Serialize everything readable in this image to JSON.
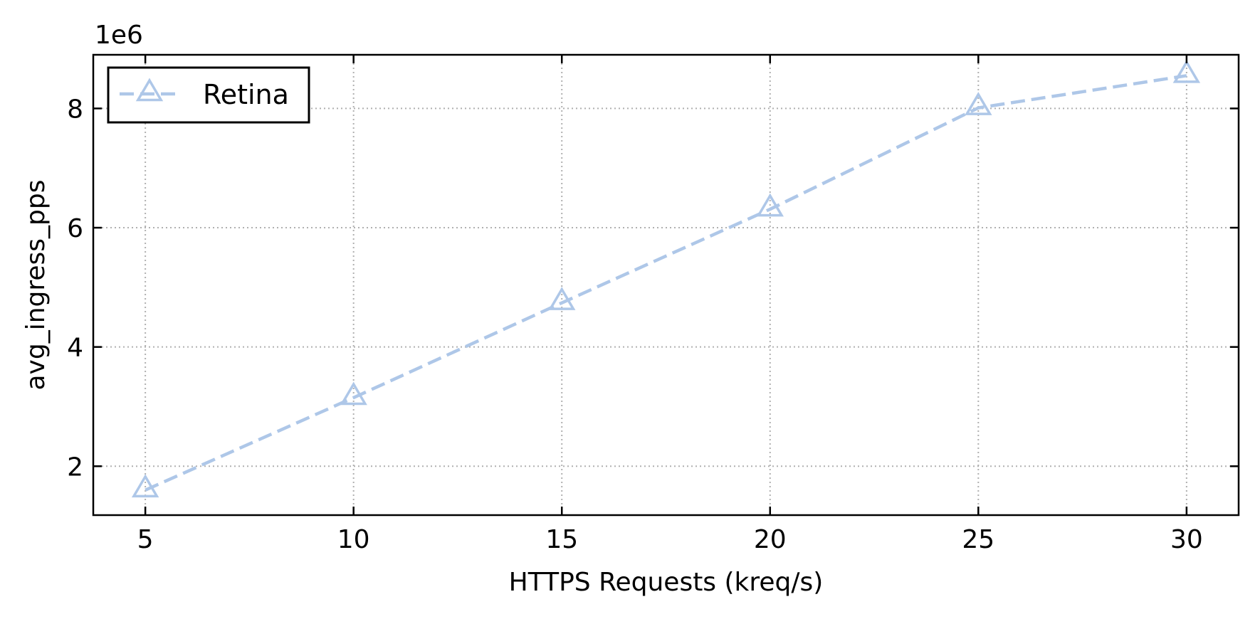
{
  "chart_data": {
    "type": "line",
    "title": "",
    "xlabel": "HTTPS Requests (kreq/s)",
    "ylabel": "avg_ingress_pps",
    "y_offset_label": "1e6",
    "y_multiplier": 1000000,
    "x": [
      5,
      10,
      15,
      20,
      25,
      30
    ],
    "series": [
      {
        "name": "Retina",
        "values": [
          1600000,
          3150000,
          4740000,
          6310000,
          8010000,
          8550000
        ],
        "color": "#aec7e8",
        "line_style": "dashed",
        "marker": "hollow-triangle"
      }
    ],
    "xlim": [
      3.75,
      31.25
    ],
    "ylim": [
      1180000,
      8900000
    ],
    "x_ticks": [
      5,
      10,
      15,
      20,
      25,
      30
    ],
    "x_tick_labels": [
      "5",
      "10",
      "15",
      "20",
      "25",
      "30"
    ],
    "y_ticks": [
      2000000,
      4000000,
      6000000,
      8000000
    ],
    "y_tick_labels": [
      "2",
      "4",
      "6",
      "8"
    ],
    "grid": true,
    "grid_style": "dotted",
    "legend_position": "top-left"
  }
}
